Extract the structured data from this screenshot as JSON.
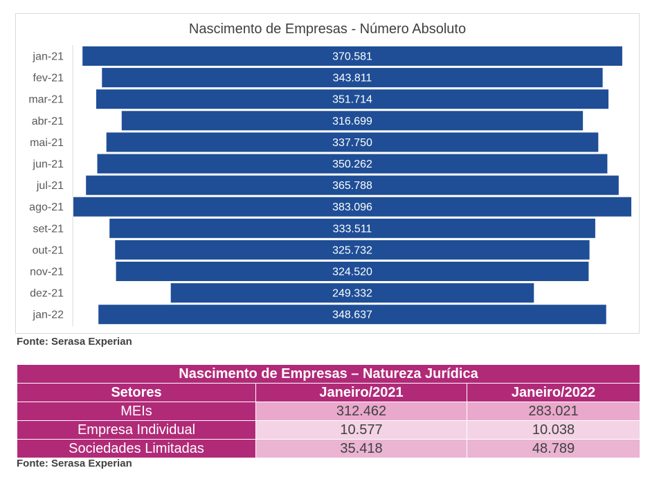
{
  "chart_data": {
    "type": "bar",
    "orientation": "horizontal",
    "layout": "centered",
    "title": "Nascimento de Empresas - Número Absoluto",
    "categories": [
      "jan-21",
      "fev-21",
      "mar-21",
      "abr-21",
      "mai-21",
      "jun-21",
      "jul-21",
      "ago-21",
      "set-21",
      "out-21",
      "nov-21",
      "dez-21",
      "jan-22"
    ],
    "values": [
      370581,
      343811,
      351714,
      316699,
      337750,
      350262,
      365788,
      383096,
      333511,
      325732,
      324520,
      249332,
      348637
    ],
    "value_labels": [
      "370.581",
      "343.811",
      "351.714",
      "316.699",
      "337.750",
      "350.262",
      "365.788",
      "383.096",
      "333.511",
      "325.732",
      "324.520",
      "249.332",
      "348.637"
    ],
    "bar_color": "#1f4e96",
    "grid": false,
    "legend": "none"
  },
  "source_top": "Fonte: Serasa Experian",
  "table": {
    "title": "Nascimento de Empresas – Natureza Jurídica",
    "headers": [
      "Setores",
      "Janeiro/2021",
      "Janeiro/2022"
    ],
    "rows": [
      {
        "sector": "MEIs",
        "jan2021": "312.462",
        "jan2022": "283.021"
      },
      {
        "sector": "Empresa Individual",
        "jan2021": "10.577",
        "jan2022": "10.038"
      },
      {
        "sector": "Sociedades Limitadas",
        "jan2021": "35.418",
        "jan2022": "48.789"
      }
    ],
    "header_color": "#b12a78"
  },
  "source_bottom": "Fonte: Serasa Experian"
}
